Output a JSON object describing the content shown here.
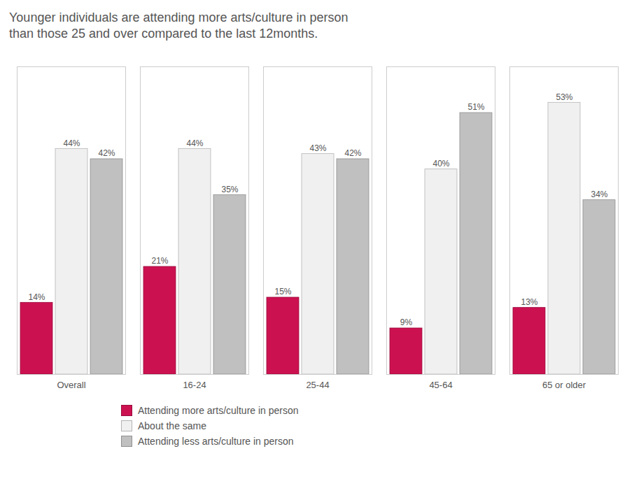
{
  "chart_data": {
    "type": "bar",
    "title": "Younger individuals are attending more arts/culture in person\nthan those 25 and over compared to the last 12months.",
    "categories": [
      "Overall",
      "16-24",
      "25-44",
      "45-64",
      "65 or older"
    ],
    "series": [
      {
        "name": "Attending more arts/culture in person",
        "color": "#cc1151",
        "values": [
          14,
          21,
          15,
          9,
          13
        ],
        "value_labels": [
          "14%",
          "21%",
          "15%",
          "9%",
          "13%"
        ]
      },
      {
        "name": "About the same",
        "color": "#f0f0f0",
        "values": [
          44,
          44,
          43,
          40,
          53
        ],
        "value_labels": [
          "44%",
          "44%",
          "43%",
          "40%",
          "53%"
        ]
      },
      {
        "name": "Attending less arts/culture in person",
        "color": "#c0c0c0",
        "values": [
          42,
          35,
          42,
          51,
          34
        ],
        "value_labels": [
          "42%",
          "35%",
          "42%",
          "51%",
          "34%"
        ]
      }
    ],
    "ylim": [
      0,
      60
    ],
    "yticks": [],
    "grid": false,
    "legend": "bottom",
    "data_labels": true,
    "tick_labels": "x"
  }
}
